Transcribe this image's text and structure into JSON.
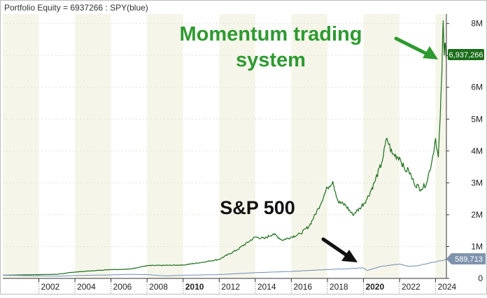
{
  "chart_data": {
    "type": "line",
    "title": "Portfolio Equity = 6937266 : SPY(blue)",
    "x_ticks": [
      "2002",
      "2004",
      "2006",
      "2008",
      "2010",
      "2012",
      "2014",
      "2016",
      "2018",
      "2020",
      "2022",
      "2024"
    ],
    "bold_x_ticks": [
      "2010",
      "2020"
    ],
    "y_ticks": [
      "0",
      "1M",
      "2M",
      "3M",
      "4M",
      "5M",
      "6M",
      "7M",
      "8M"
    ],
    "xlim": [
      2000.0,
      2024.6
    ],
    "ylim": [
      0,
      8300000
    ],
    "grid": true,
    "annotations": {
      "momentum": [
        "Momentum trading",
        "system"
      ],
      "sp500": "S&P 500"
    },
    "last_value_labels": {
      "portfolio": "6,937,266",
      "spy": "589,713"
    },
    "series": [
      {
        "color": "#1b6e1b",
        "points": [
          [
            2000.0,
            100000
          ],
          [
            2002.0,
            120000
          ],
          [
            2003.0,
            130000
          ],
          [
            2004.0,
            200000
          ],
          [
            2006.0,
            280000
          ],
          [
            2007.0,
            290000
          ],
          [
            2008.0,
            400000
          ],
          [
            2010.0,
            420000
          ],
          [
            2011.0,
            500000
          ],
          [
            2012.0,
            600000
          ],
          [
            2013.0,
            900000
          ],
          [
            2014.0,
            1300000
          ],
          [
            2014.5,
            1250000
          ],
          [
            2015.0,
            1400000
          ],
          [
            2015.5,
            1200000
          ],
          [
            2016.0,
            1300000
          ],
          [
            2016.5,
            1400000
          ],
          [
            2017.0,
            1650000
          ],
          [
            2017.5,
            2200000
          ],
          [
            2018.0,
            2850000
          ],
          [
            2018.3,
            3050000
          ],
          [
            2018.6,
            2400000
          ],
          [
            2019.0,
            2300000
          ],
          [
            2019.4,
            2000000
          ],
          [
            2019.8,
            2200000
          ],
          [
            2020.2,
            2500000
          ],
          [
            2020.6,
            3000000
          ],
          [
            2021.0,
            3600000
          ],
          [
            2021.3,
            4400000
          ],
          [
            2021.6,
            3900000
          ],
          [
            2022.0,
            3800000
          ],
          [
            2022.3,
            3400000
          ],
          [
            2022.5,
            3400000
          ],
          [
            2022.8,
            3000000
          ],
          [
            2023.2,
            2800000
          ],
          [
            2023.5,
            3000000
          ],
          [
            2023.8,
            3700000
          ],
          [
            2024.0,
            4400000
          ],
          [
            2024.15,
            3800000
          ],
          [
            2024.25,
            5000000
          ],
          [
            2024.35,
            6500000
          ],
          [
            2024.42,
            8100000
          ],
          [
            2024.48,
            7000000
          ],
          [
            2024.53,
            7400000
          ],
          [
            2024.58,
            6937266
          ]
        ]
      },
      {
        "color": "#6f8fb8",
        "points": [
          [
            2000.0,
            100000
          ],
          [
            2002.0,
            80000
          ],
          [
            2003.0,
            70000
          ],
          [
            2004.0,
            90000
          ],
          [
            2006.0,
            110000
          ],
          [
            2007.0,
            130000
          ],
          [
            2008.0,
            120000
          ],
          [
            2009.0,
            80000
          ],
          [
            2010.0,
            100000
          ],
          [
            2012.0,
            120000
          ],
          [
            2014.0,
            180000
          ],
          [
            2016.0,
            220000
          ],
          [
            2018.0,
            280000
          ],
          [
            2019.0,
            300000
          ],
          [
            2020.0,
            330000
          ],
          [
            2020.2,
            250000
          ],
          [
            2021.0,
            380000
          ],
          [
            2022.0,
            450000
          ],
          [
            2022.5,
            380000
          ],
          [
            2023.0,
            400000
          ],
          [
            2024.0,
            520000
          ],
          [
            2024.58,
            589713
          ]
        ]
      }
    ]
  }
}
